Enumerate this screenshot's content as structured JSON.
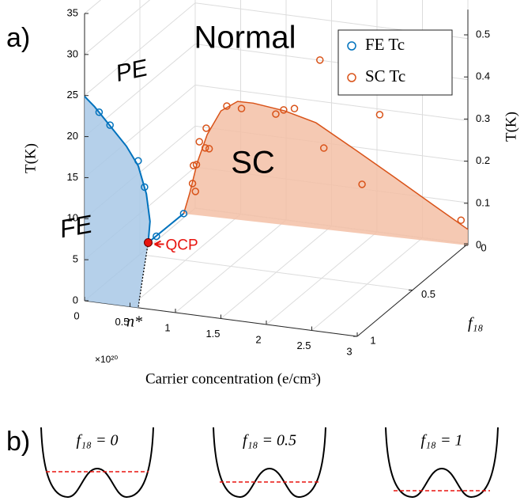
{
  "a_label": "a)",
  "b_label": "b)",
  "chart_data": {
    "type": "scatter3d",
    "regions": {
      "normal": "Normal",
      "pe": "PE",
      "fe": "FE",
      "sc": "SC"
    },
    "qcp": {
      "label": "QCP",
      "x": 0.7,
      "y": 8.1,
      "color": "#e8140f"
    },
    "n_star": "n*",
    "xlabel": "Carrier concentration (e/cm³)",
    "x_multiplier": "×10²⁰",
    "xlim": [
      0,
      3
    ],
    "xticks": [
      0,
      0.5,
      1,
      1.5,
      2,
      2.5,
      3
    ],
    "ylabel": "T(K)",
    "ylim": [
      0,
      35
    ],
    "yticks": [
      0,
      5,
      10,
      15,
      20,
      25,
      30,
      35
    ],
    "y2label": "T(K)",
    "y2lim": [
      0,
      0.56
    ],
    "y2ticks": [
      0,
      0.1,
      0.2,
      0.3,
      0.4,
      0.5
    ],
    "zlabel": "f₁₈",
    "zlim": [
      0,
      1
    ],
    "zticks": [
      0,
      0.5,
      1
    ],
    "grid": true,
    "series": [
      {
        "name": "FE Tc",
        "color": "#0072bd",
        "x": [
          0.16,
          0.28,
          0.59,
          0.66,
          0.79,
          1.09
        ],
        "values": [
          23.2,
          21.8,
          17.9,
          14.8,
          9.0,
          12.2
        ]
      },
      {
        "name": "SC Tc",
        "color": "#d95319",
        "axis": "y2",
        "x": [
          0.26,
          0.33,
          0.32,
          0.36,
          0.2,
          0.23,
          0.19,
          0.22,
          0.54,
          0.69,
          1.04,
          1.12,
          1.23,
          1.49,
          2.1,
          1.53,
          1.92,
          2.93
        ],
        "values": [
          0.175,
          0.209,
          0.162,
          0.161,
          0.117,
          0.12,
          0.074,
          0.056,
          0.267,
          0.265,
          0.261,
          0.273,
          0.279,
          0.401,
          0.287,
          0.193,
          0.117,
          0.058
        ]
      }
    ],
    "fe_fit": {
      "color": "#0072bd",
      "fill": "#a8c8e6",
      "x": [
        0,
        0.11,
        0.29,
        0.46,
        0.59,
        0.68,
        0.72,
        0.7
      ],
      "values": [
        24.9,
        23.8,
        21.6,
        19.5,
        17.3,
        14.0,
        10.7,
        8.1
      ]
    },
    "fe_boundary": {
      "x": [
        0.7,
        0.64,
        0.59
      ],
      "values": [
        8.1,
        3.8,
        0
      ]
    },
    "sc_fit": {
      "color": "#d95319",
      "fill": "#f3bfa6",
      "x": [
        0.1,
        0.16,
        0.24,
        0.34,
        0.48,
        0.65,
        0.81,
        1.13,
        1.45,
        1.86,
        2.26,
        2.66,
        3.0
      ],
      "values": [
        0,
        0.049,
        0.126,
        0.194,
        0.254,
        0.281,
        0.281,
        0.271,
        0.251,
        0.196,
        0.141,
        0.085,
        0.038
      ]
    }
  },
  "panel_b": {
    "wells": [
      {
        "label": "f₁₈ = 0"
      },
      {
        "label": "f₁₈ = 0.5"
      },
      {
        "label": "f₁₈ = 1"
      }
    ]
  }
}
